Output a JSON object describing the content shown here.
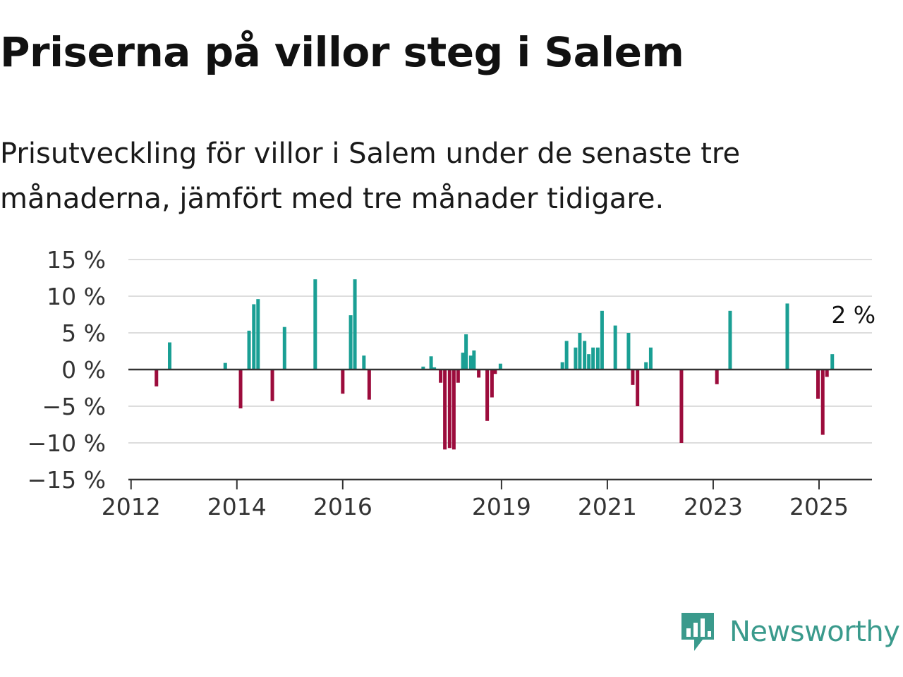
{
  "title": "Priserna på villor steg i Salem",
  "subtitle": "Prisutveckling för villor i Salem under de senaste tre månaderna, jämfört med tre månader tidigare.",
  "brand": {
    "name": "Newsworthy",
    "color": "#3a9a8c"
  },
  "colors": {
    "positive": "#1a9f94",
    "negative": "#9c0c3c",
    "grid": "#dddddd",
    "axis": "#333333"
  },
  "chart_data": {
    "type": "bar",
    "title": "Priserna på villor steg i Salem",
    "subtitle": "Prisutveckling för villor i Salem under de senaste tre månaderna, jämfört med tre månader tidigare.",
    "xlabel": "",
    "ylabel": "",
    "ylim": [
      -15,
      15
    ],
    "yticks": [
      15,
      10,
      5,
      0,
      -5,
      -10,
      -15
    ],
    "ytick_labels": [
      "15 %",
      "10 %",
      "5 %",
      "0 %",
      "−5 %",
      "−10 %",
      "−15 %"
    ],
    "xlim": [
      2011.95,
      2026.0
    ],
    "xticks": [
      2012,
      2014,
      2016,
      2019,
      2021,
      2023,
      2025
    ],
    "xtick_labels": [
      "2012",
      "2014",
      "2016",
      "2019",
      "2021",
      "2023",
      "2025"
    ],
    "grid": true,
    "annotation": {
      "text": "2 %",
      "x": 2025.25,
      "y": 2.1
    },
    "points": [
      {
        "x": 2012.48,
        "y": -2.3
      },
      {
        "x": 2012.73,
        "y": 3.7
      },
      {
        "x": 2013.78,
        "y": 0.9
      },
      {
        "x": 2014.07,
        "y": -5.3
      },
      {
        "x": 2014.23,
        "y": 5.3
      },
      {
        "x": 2014.32,
        "y": 8.9
      },
      {
        "x": 2014.4,
        "y": 9.6
      },
      {
        "x": 2014.67,
        "y": -4.3
      },
      {
        "x": 2014.9,
        "y": 5.8
      },
      {
        "x": 2015.48,
        "y": 12.3
      },
      {
        "x": 2016.0,
        "y": -3.3
      },
      {
        "x": 2016.15,
        "y": 7.4
      },
      {
        "x": 2016.23,
        "y": 12.3
      },
      {
        "x": 2016.4,
        "y": 1.9
      },
      {
        "x": 2016.5,
        "y": -4.1
      },
      {
        "x": 2017.52,
        "y": 0.4
      },
      {
        "x": 2017.67,
        "y": 1.8
      },
      {
        "x": 2017.73,
        "y": 0.3
      },
      {
        "x": 2017.85,
        "y": -1.8
      },
      {
        "x": 2017.93,
        "y": -10.9
      },
      {
        "x": 2018.02,
        "y": -10.7
      },
      {
        "x": 2018.1,
        "y": -10.9
      },
      {
        "x": 2018.18,
        "y": -1.8
      },
      {
        "x": 2018.27,
        "y": 2.3
      },
      {
        "x": 2018.33,
        "y": 4.8
      },
      {
        "x": 2018.42,
        "y": 1.9
      },
      {
        "x": 2018.48,
        "y": 2.6
      },
      {
        "x": 2018.57,
        "y": -1.1
      },
      {
        "x": 2018.73,
        "y": -7.0
      },
      {
        "x": 2018.82,
        "y": -3.8
      },
      {
        "x": 2018.88,
        "y": -0.6
      },
      {
        "x": 2018.98,
        "y": 0.8
      },
      {
        "x": 2020.15,
        "y": 1.0
      },
      {
        "x": 2020.23,
        "y": 3.9
      },
      {
        "x": 2020.4,
        "y": 3.0
      },
      {
        "x": 2020.48,
        "y": 5.0
      },
      {
        "x": 2020.57,
        "y": 3.9
      },
      {
        "x": 2020.65,
        "y": 2.1
      },
      {
        "x": 2020.73,
        "y": 3.0
      },
      {
        "x": 2020.82,
        "y": 3.0
      },
      {
        "x": 2020.9,
        "y": 8.0
      },
      {
        "x": 2021.15,
        "y": 6.0
      },
      {
        "x": 2021.4,
        "y": 5.0
      },
      {
        "x": 2021.48,
        "y": -2.1
      },
      {
        "x": 2021.57,
        "y": -5.0
      },
      {
        "x": 2021.73,
        "y": 1.0
      },
      {
        "x": 2021.82,
        "y": 3.0
      },
      {
        "x": 2022.4,
        "y": -10.0
      },
      {
        "x": 2023.07,
        "y": -2.0
      },
      {
        "x": 2023.32,
        "y": 8.0
      },
      {
        "x": 2024.4,
        "y": 9.0
      },
      {
        "x": 2024.98,
        "y": -4.0
      },
      {
        "x": 2025.07,
        "y": -8.9
      },
      {
        "x": 2025.15,
        "y": -1.0
      },
      {
        "x": 2025.25,
        "y": 2.1
      }
    ]
  }
}
